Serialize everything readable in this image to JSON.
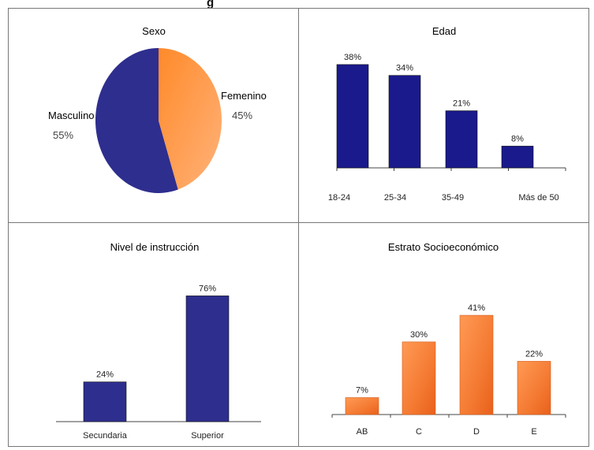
{
  "figure": {
    "title_fragment": "g"
  },
  "chart_data": [
    {
      "type": "pie",
      "title": "Sexo",
      "slices": [
        {
          "label": "Masculino",
          "value": 55,
          "value_label": "55%",
          "color": "#2e2e8f"
        },
        {
          "label": "Femenino",
          "value": 45,
          "value_label": "45%",
          "color": "#ff8c3a"
        }
      ]
    },
    {
      "type": "bar",
      "title": "Edad",
      "categories": [
        "18-24",
        "25-34",
        "35-49",
        "Más de 50"
      ],
      "values": [
        38,
        34,
        21,
        8
      ],
      "value_labels": [
        "38%",
        "34%",
        "21%",
        "8%"
      ],
      "color": "#1a1a8c",
      "ylim": [
        0,
        40
      ]
    },
    {
      "type": "bar",
      "title": "Nivel de instrucción",
      "categories": [
        "Secundaria",
        "Superior"
      ],
      "values": [
        24,
        76
      ],
      "value_labels": [
        "24%",
        "76%"
      ],
      "color": "#2e2e8f",
      "ylim": [
        0,
        80
      ]
    },
    {
      "type": "bar",
      "title": "Estrato Socioeconómico",
      "categories": [
        "AB",
        "C",
        "D",
        "E"
      ],
      "values": [
        7,
        30,
        41,
        22
      ],
      "value_labels": [
        "7%",
        "30%",
        "41%",
        "22%"
      ],
      "color": "#f07a2e",
      "ylim": [
        0,
        42
      ]
    }
  ]
}
